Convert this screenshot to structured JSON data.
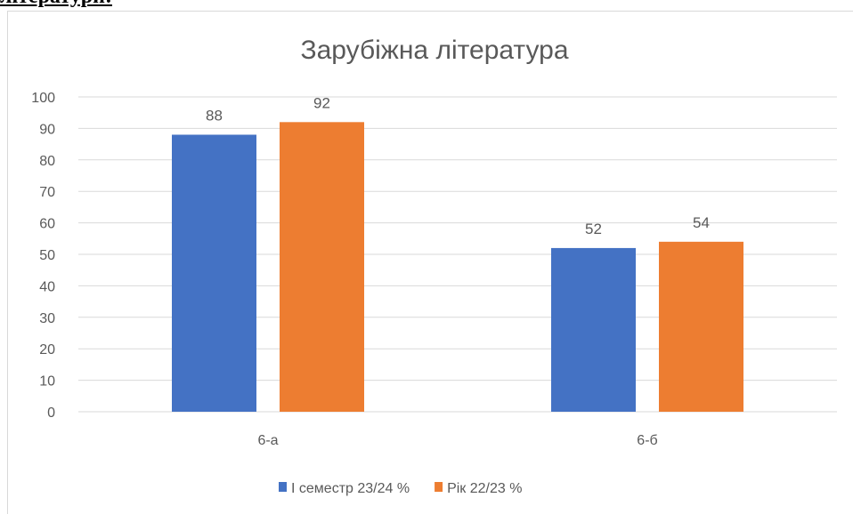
{
  "heading": "літератури:",
  "chart_data": {
    "type": "bar",
    "title": "Зарубіжна література",
    "categories": [
      "6-а",
      "6-б"
    ],
    "series": [
      {
        "name": "І семестр 23/24 %",
        "color": "#4472c4",
        "values": [
          88,
          52
        ]
      },
      {
        "name": "Рік 22/23 %",
        "color": "#ed7d31",
        "values": [
          92,
          54
        ]
      }
    ],
    "ylim": [
      0,
      100
    ],
    "yticks": [
      0,
      10,
      20,
      30,
      40,
      50,
      60,
      70,
      80,
      90,
      100
    ],
    "grid": true,
    "legend": "bottom",
    "data_labels": true
  }
}
